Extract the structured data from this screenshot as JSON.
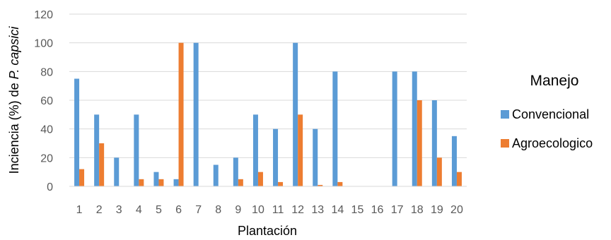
{
  "chart_data": {
    "type": "bar",
    "xlabel": "Plantación",
    "ylabel_prefix": "Inciencia (%) de ",
    "ylabel_italic": "P. capsici",
    "ylim": [
      0,
      120
    ],
    "yticks": [
      0,
      20,
      40,
      60,
      80,
      100,
      120
    ],
    "grid": true,
    "legend_placement": "right",
    "legend_title": "Manejo",
    "categories": [
      "1",
      "2",
      "3",
      "4",
      "5",
      "6",
      "7",
      "8",
      "9",
      "10",
      "11",
      "12",
      "13",
      "14",
      "15",
      "16",
      "17",
      "18",
      "19",
      "20"
    ],
    "series": [
      {
        "name": "Convencional",
        "color": "#5B9BD5",
        "values": [
          75,
          50,
          20,
          50,
          10,
          5,
          100,
          15,
          20,
          50,
          40,
          100,
          40,
          80,
          0,
          0,
          80,
          80,
          60,
          35
        ]
      },
      {
        "name": "Agroecologico",
        "color": "#ED7D31",
        "values": [
          12,
          30,
          0,
          5,
          5,
          100,
          0,
          0,
          5,
          10,
          3,
          50,
          1,
          3,
          0,
          0,
          0,
          60,
          20,
          10
        ]
      }
    ]
  }
}
